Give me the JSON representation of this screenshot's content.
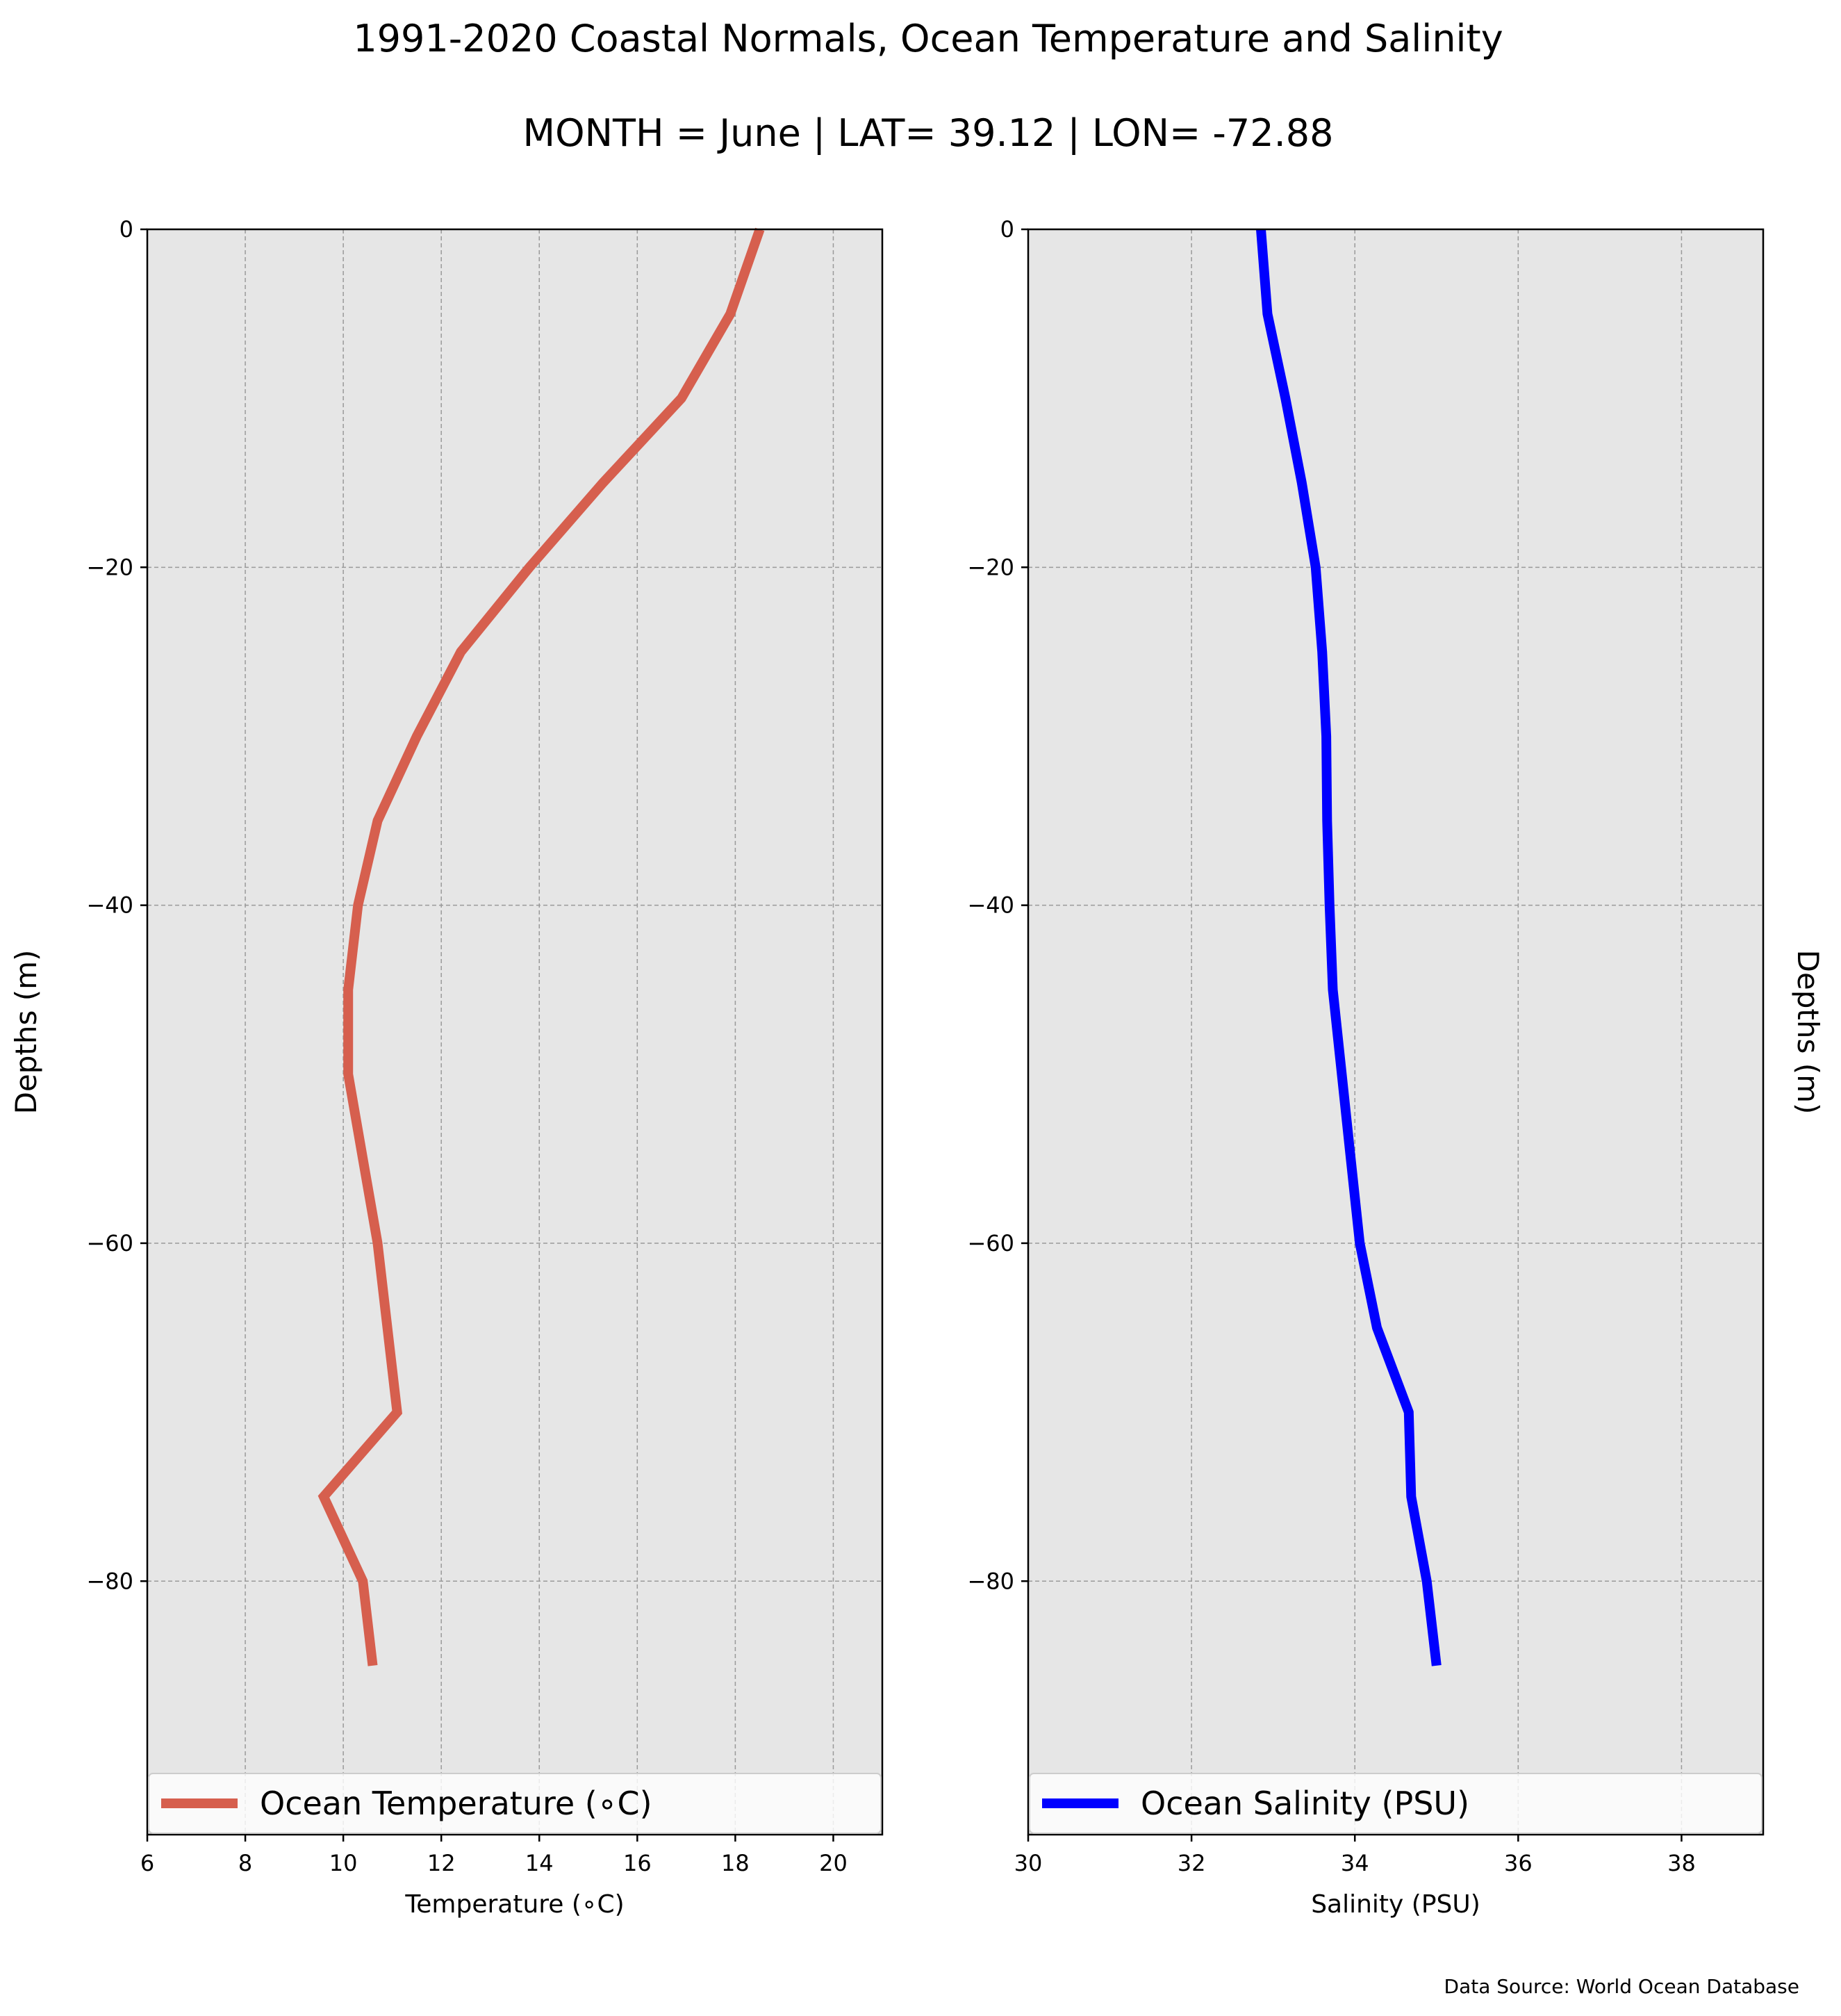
{
  "figure": {
    "title": "1991-2020 Coastal Normals, Ocean Temperature and Salinity",
    "subtitle": "MONTH = June | LAT= 39.12 | LON= -72.88",
    "source": "Data Source: World Ocean Database",
    "background": "#ffffff",
    "plot_background": "#e6e6e6"
  },
  "chart_data": [
    {
      "type": "line",
      "panel": "left",
      "xlabel": "Temperature ($^\\circ$C)",
      "xlabel_display": "Temperature (∘C)",
      "ylabel": "Depths (m)",
      "xlim": [
        6,
        21
      ],
      "ylim": [
        -95,
        0
      ],
      "xticks": [
        6,
        8,
        10,
        12,
        14,
        16,
        18,
        20
      ],
      "yticks": [
        0,
        -20,
        -40,
        -60,
        -80
      ],
      "ytick_labels": [
        "0",
        "−20",
        "−40",
        "−60",
        "−80"
      ],
      "grid": true,
      "legend": "lower-center",
      "series": [
        {
          "name": "Ocean Temperature (∘C)",
          "color": "#d65f4e",
          "depth": [
            0,
            -5,
            -10,
            -15,
            -20,
            -25,
            -30,
            -35,
            -40,
            -45,
            -50,
            -55,
            -60,
            -65,
            -70,
            -75,
            -80,
            -85
          ],
          "values": [
            18.5,
            17.9,
            16.9,
            15.3,
            13.8,
            12.4,
            11.5,
            10.7,
            10.3,
            10.1,
            10.1,
            10.4,
            10.7,
            10.9,
            11.1,
            9.6,
            10.4,
            10.6
          ]
        }
      ]
    },
    {
      "type": "line",
      "panel": "right",
      "xlabel": "Salinity (PSU)",
      "ylabel": "Depths (m)",
      "xlim": [
        30,
        39
      ],
      "ylim": [
        -95,
        0
      ],
      "xticks": [
        30,
        32,
        34,
        36,
        38
      ],
      "yticks": [
        0,
        -20,
        -40,
        -60,
        -80
      ],
      "ytick_labels": [
        "0",
        "−20",
        "−40",
        "−60",
        "−80"
      ],
      "grid": true,
      "legend": "lower-center",
      "series": [
        {
          "name": "Ocean Salinity (PSU)",
          "color": "#0000ff",
          "depth": [
            0,
            -5,
            -10,
            -15,
            -20,
            -25,
            -30,
            -35,
            -40,
            -45,
            -50,
            -55,
            -60,
            -65,
            -70,
            -75,
            -80,
            -85
          ],
          "values": [
            32.85,
            32.93,
            33.15,
            33.35,
            33.52,
            33.6,
            33.65,
            33.66,
            33.69,
            33.73,
            33.84,
            33.95,
            34.06,
            34.27,
            34.66,
            34.69,
            34.88,
            35.0
          ]
        }
      ]
    }
  ]
}
